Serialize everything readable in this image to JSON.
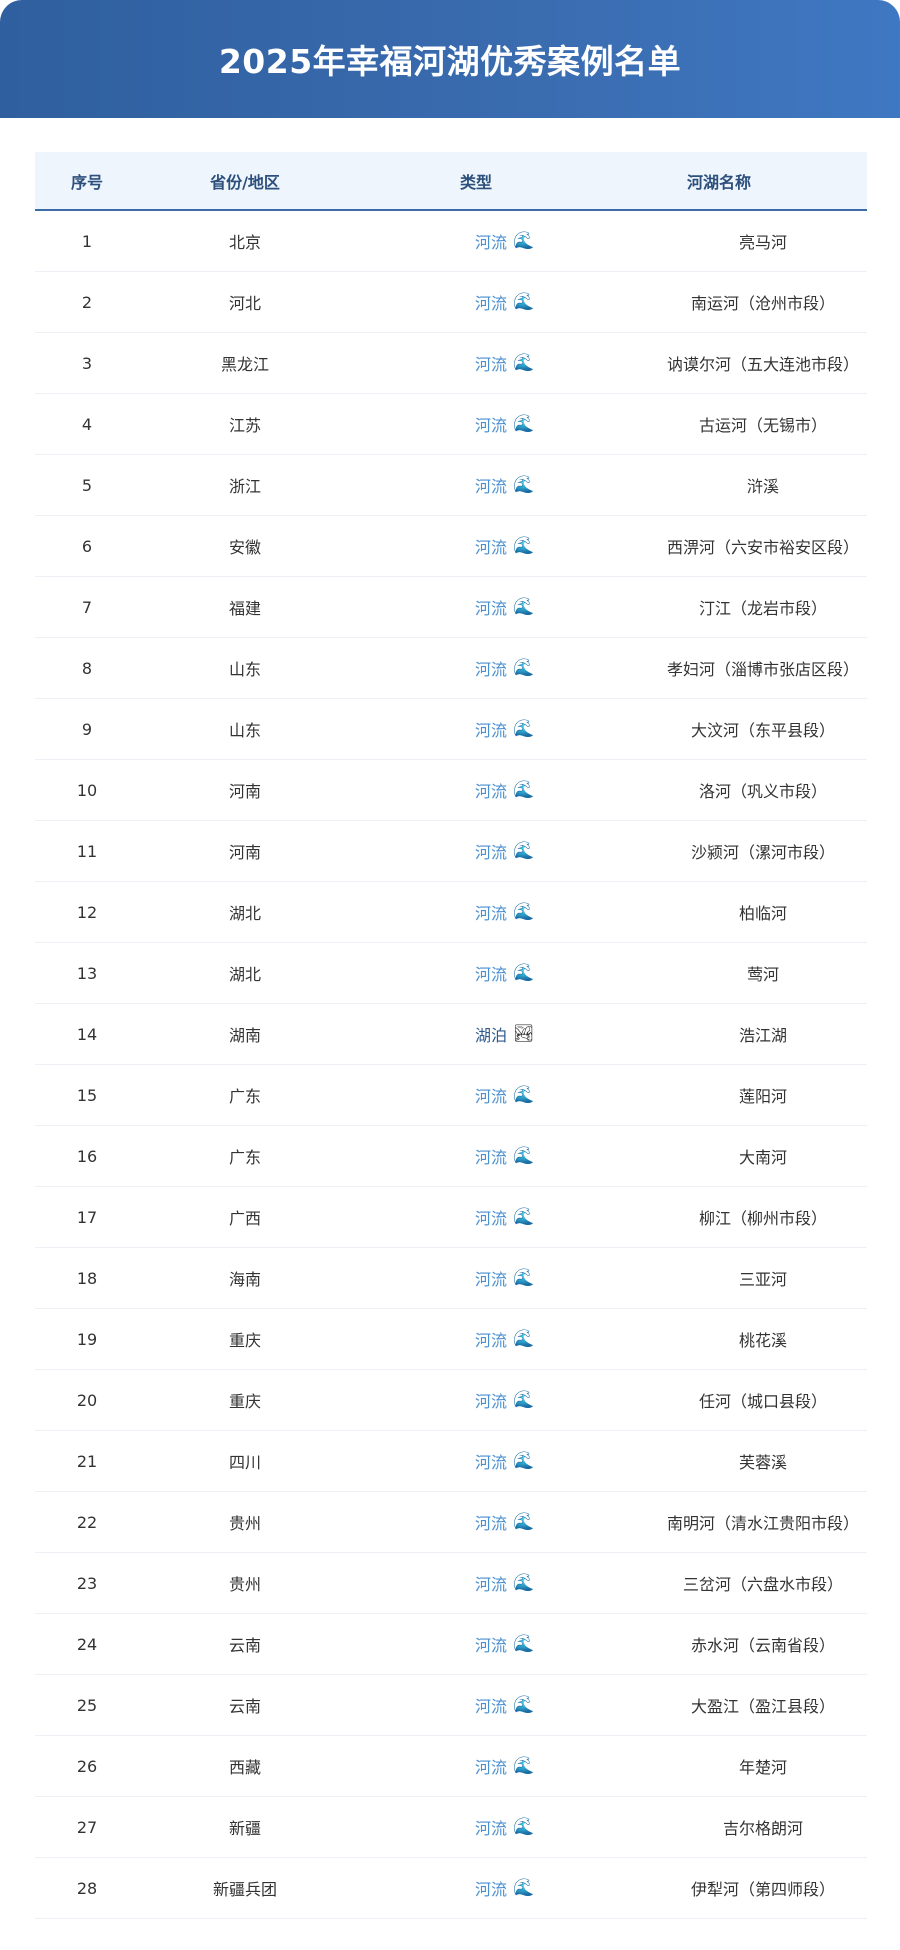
{
  "title": "2025年幸福河湖优秀案例名单",
  "colors": {
    "banner": "#3a6cb0",
    "river_type": "#4a8fd0",
    "lake_type": "#2c5a8c",
    "header_bg": "#eef5fc"
  },
  "table": {
    "headers": [
      "序号",
      "省份/地区",
      "类型",
      "河湖名称"
    ],
    "rows": [
      {
        "no": "1",
        "province": "北京",
        "type": "河流",
        "icon": "🌊",
        "name": "亮马河"
      },
      {
        "no": "2",
        "province": "河北",
        "type": "河流",
        "icon": "🌊",
        "name": "南运河（沧州市段）"
      },
      {
        "no": "3",
        "province": "黑龙江",
        "type": "河流",
        "icon": "🌊",
        "name": "讷谟尔河（五大连池市段）"
      },
      {
        "no": "4",
        "province": "江苏",
        "type": "河流",
        "icon": "🌊",
        "name": "古运河（无锡市）"
      },
      {
        "no": "5",
        "province": "浙江",
        "type": "河流",
        "icon": "🌊",
        "name": "浒溪"
      },
      {
        "no": "6",
        "province": "安徽",
        "type": "河流",
        "icon": "🌊",
        "name": "西淠河（六安市裕安区段）"
      },
      {
        "no": "7",
        "province": "福建",
        "type": "河流",
        "icon": "🌊",
        "name": "汀江（龙岩市段）"
      },
      {
        "no": "8",
        "province": "山东",
        "type": "河流",
        "icon": "🌊",
        "name": "孝妇河（淄博市张店区段）"
      },
      {
        "no": "9",
        "province": "山东",
        "type": "河流",
        "icon": "🌊",
        "name": "大汶河（东平县段）"
      },
      {
        "no": "10",
        "province": "河南",
        "type": "河流",
        "icon": "🌊",
        "name": "洛河（巩义市段）"
      },
      {
        "no": "11",
        "province": "河南",
        "type": "河流",
        "icon": "🌊",
        "name": "沙颍河（漯河市段）"
      },
      {
        "no": "12",
        "province": "湖北",
        "type": "河流",
        "icon": "🌊",
        "name": "柏临河"
      },
      {
        "no": "13",
        "province": "湖北",
        "type": "河流",
        "icon": "🌊",
        "name": "莺河"
      },
      {
        "no": "14",
        "province": "湖南",
        "type": "湖泊",
        "icon": "🏞",
        "name": "浩江湖"
      },
      {
        "no": "15",
        "province": "广东",
        "type": "河流",
        "icon": "🌊",
        "name": "莲阳河"
      },
      {
        "no": "16",
        "province": "广东",
        "type": "河流",
        "icon": "🌊",
        "name": "大南河"
      },
      {
        "no": "17",
        "province": "广西",
        "type": "河流",
        "icon": "🌊",
        "name": "柳江（柳州市段）"
      },
      {
        "no": "18",
        "province": "海南",
        "type": "河流",
        "icon": "🌊",
        "name": "三亚河"
      },
      {
        "no": "19",
        "province": "重庆",
        "type": "河流",
        "icon": "🌊",
        "name": "桃花溪"
      },
      {
        "no": "20",
        "province": "重庆",
        "type": "河流",
        "icon": "🌊",
        "name": "任河（城口县段）"
      },
      {
        "no": "21",
        "province": "四川",
        "type": "河流",
        "icon": "🌊",
        "name": "芙蓉溪"
      },
      {
        "no": "22",
        "province": "贵州",
        "type": "河流",
        "icon": "🌊",
        "name": "南明河（清水江贵阳市段）"
      },
      {
        "no": "23",
        "province": "贵州",
        "type": "河流",
        "icon": "🌊",
        "name": "三岔河（六盘水市段）"
      },
      {
        "no": "24",
        "province": "云南",
        "type": "河流",
        "icon": "🌊",
        "name": "赤水河（云南省段）"
      },
      {
        "no": "25",
        "province": "云南",
        "type": "河流",
        "icon": "🌊",
        "name": "大盈江（盈江县段）"
      },
      {
        "no": "26",
        "province": "西藏",
        "type": "河流",
        "icon": "🌊",
        "name": "年楚河"
      },
      {
        "no": "27",
        "province": "新疆",
        "type": "河流",
        "icon": "🌊",
        "name": "吉尔格朗河"
      },
      {
        "no": "28",
        "province": "新疆兵团",
        "type": "河流",
        "icon": "🌊",
        "name": "伊犁河（第四师段）"
      }
    ]
  }
}
